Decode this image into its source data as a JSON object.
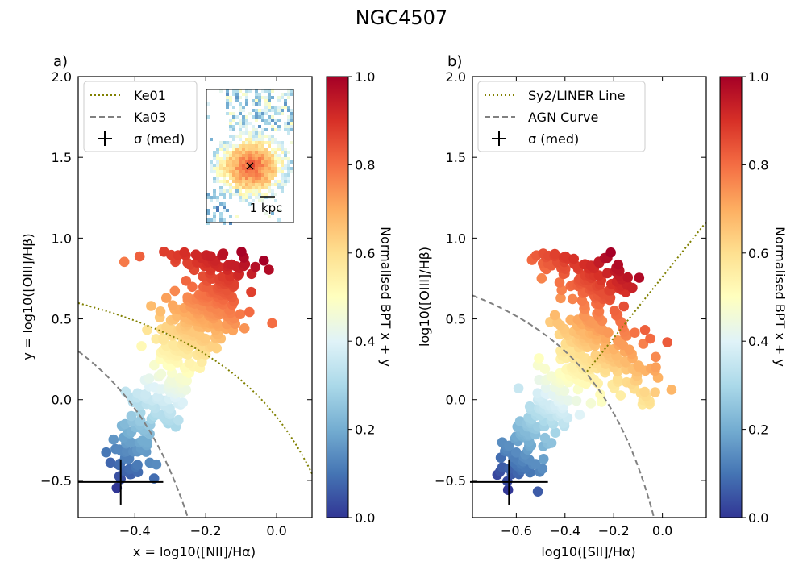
{
  "title": "NGC4507",
  "colors": {
    "colormap": [
      "#313695",
      "#4575b4",
      "#74add1",
      "#abd9e9",
      "#e0f3f8",
      "#ffffbf",
      "#fee090",
      "#fdae61",
      "#f46d43",
      "#d73027",
      "#a50026"
    ],
    "ke01": "#808000",
    "ka03": "#808080",
    "axes": "#000000"
  },
  "colorbar": {
    "label": "Normalised BPT x + y",
    "ticks": [
      "0.0",
      "0.2",
      "0.4",
      "0.6",
      "0.8",
      "1.0"
    ],
    "tick_values": [
      0,
      0.2,
      0.4,
      0.6,
      0.8,
      1.0
    ]
  },
  "inset": {
    "scalebar_label": "1 kpc",
    "marker": "×"
  },
  "chart_data": [
    {
      "panel_label": "a)",
      "type": "scatter",
      "xlabel": "x = log10([NII]/Hα)",
      "ylabel": "y = log10([OIII]/Hβ)",
      "xlim": [
        -0.56,
        0.1
      ],
      "ylim": [
        -0.73,
        2.0
      ],
      "xticks": [
        -0.4,
        -0.2,
        0.0
      ],
      "xtick_labels": [
        "−0.4",
        "−0.2",
        "0.0"
      ],
      "yticks": [
        -0.5,
        0.0,
        0.5,
        1.0,
        1.5,
        2.0
      ],
      "ytick_labels": [
        "−0.5",
        "0.0",
        "0.5",
        "1.0",
        "1.5",
        "2.0"
      ],
      "legend": {
        "placement": "top-left",
        "entries": [
          "Ke01",
          "Ka03",
          "σ (med)"
        ]
      },
      "sigma_med": {
        "x": -0.44,
        "y": -0.51,
        "xerr": 0.12,
        "yerr": 0.14
      },
      "curves": [
        {
          "name": "Ke01",
          "formula": "0.61/(x-0.47)+1.19",
          "xmax": 0.1
        },
        {
          "name": "Ka03",
          "formula": "0.61/(x-0.05)+1.3",
          "xmax": -0.001
        }
      ],
      "cloud": [
        {
          "x0": -0.44,
          "y0": -0.45,
          "x1": -0.2,
          "y1": 0.55,
          "sx": 0.03,
          "sy": 0.1,
          "n": 220
        },
        {
          "x0": -0.25,
          "y0": 0.35,
          "x1": -0.12,
          "y1": 0.8,
          "sx": 0.05,
          "sy": 0.1,
          "n": 150
        },
        {
          "x0": -0.32,
          "y0": 0.86,
          "x1": -0.05,
          "y1": 0.82,
          "sx": 0.05,
          "sy": 0.04,
          "n": 35
        },
        {
          "x0": -0.38,
          "y0": 0.4,
          "x1": -0.16,
          "y1": 0.55,
          "sx": 0.03,
          "sy": 0.1,
          "n": 30
        }
      ]
    },
    {
      "panel_label": "b)",
      "type": "scatter",
      "xlabel": "log10([SII]/Hα)",
      "ylabel": "log10([OIII]/Hβ)",
      "xlim": [
        -0.78,
        0.18
      ],
      "ylim": [
        -0.73,
        2.0
      ],
      "xticks": [
        -0.6,
        -0.4,
        -0.2,
        0.0
      ],
      "xtick_labels": [
        "−0.6",
        "−0.4",
        "−0.2",
        "0.0"
      ],
      "yticks": [
        -0.5,
        0.0,
        0.5,
        1.0,
        1.5,
        2.0
      ],
      "ytick_labels": [
        "−0.5",
        "0.0",
        "0.5",
        "1.0",
        "1.5",
        "2.0"
      ],
      "legend": {
        "placement": "top-left",
        "entries": [
          "Sy2/LINER Line",
          "AGN Curve",
          "σ (med)"
        ]
      },
      "sigma_med": {
        "x": -0.63,
        "y": -0.51,
        "xerr": 0.16,
        "yerr": 0.14
      },
      "curves": [
        {
          "name": "Sy2/LINER Line",
          "formula": "1.89x+0.76",
          "xmin": -0.31,
          "xmax": 0.18
        },
        {
          "name": "AGN Curve",
          "formula": "0.72/(x-0.32)+1.3",
          "xmax": 0.03
        }
      ],
      "cloud": [
        {
          "x0": -0.63,
          "y0": -0.45,
          "x1": -0.25,
          "y1": 0.45,
          "sx": 0.05,
          "sy": 0.09,
          "n": 220
        },
        {
          "x0": -0.35,
          "y0": 0.4,
          "x1": -0.1,
          "y1": 0.2,
          "sx": 0.06,
          "sy": 0.12,
          "n": 120
        },
        {
          "x0": -0.5,
          "y0": 0.9,
          "x1": -0.2,
          "y1": 0.6,
          "sx": 0.04,
          "sy": 0.06,
          "n": 80
        },
        {
          "x0": -0.3,
          "y0": 0.85,
          "x1": -0.15,
          "y1": 0.7,
          "sx": 0.04,
          "sy": 0.06,
          "n": 35
        }
      ]
    }
  ]
}
